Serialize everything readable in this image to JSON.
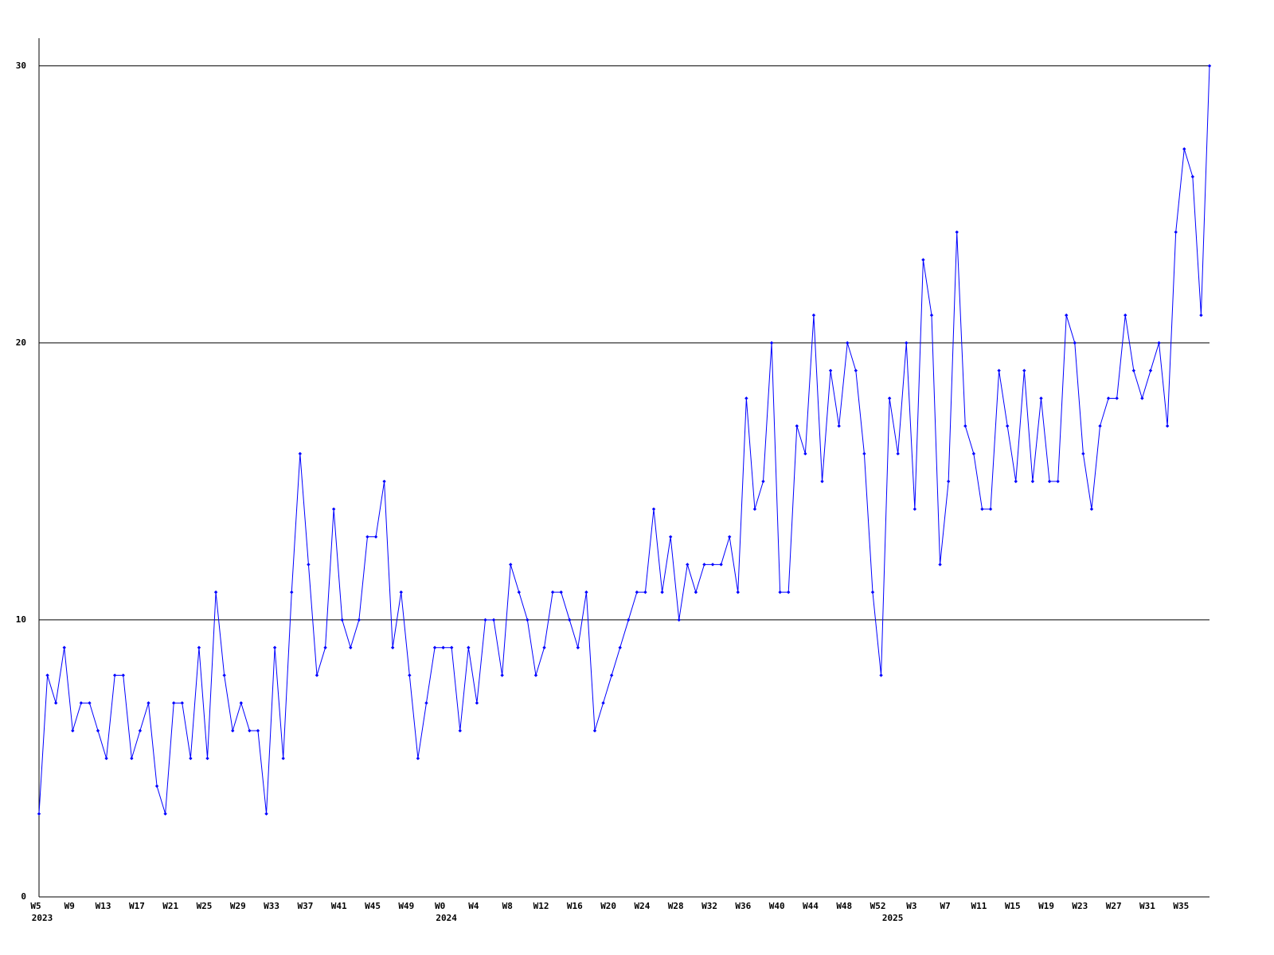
{
  "chart_data": {
    "type": "line",
    "color": "#0000ff",
    "grid": true,
    "ylim": [
      0,
      31
    ],
    "yticks": [
      0,
      10,
      20,
      30
    ],
    "categories": [
      "W5",
      null,
      null,
      null,
      "W9",
      null,
      null,
      null,
      "W13",
      null,
      null,
      null,
      "W17",
      null,
      null,
      null,
      "W21",
      null,
      null,
      null,
      "W25",
      null,
      null,
      null,
      "W29",
      null,
      null,
      null,
      "W33",
      null,
      null,
      null,
      "W37",
      null,
      null,
      null,
      "W41",
      null,
      null,
      null,
      "W45",
      null,
      null,
      null,
      "W49",
      null,
      null,
      null,
      "W0",
      null,
      null,
      null,
      "W4",
      null,
      null,
      null,
      "W8",
      null,
      null,
      null,
      "W12",
      null,
      null,
      null,
      "W16",
      null,
      null,
      null,
      "W20",
      null,
      null,
      null,
      "W24",
      null,
      null,
      null,
      "W28",
      null,
      null,
      null,
      "W32",
      null,
      null,
      null,
      "W36",
      null,
      null,
      null,
      "W40",
      null,
      null,
      null,
      "W44",
      null,
      null,
      null,
      "W48",
      null,
      null,
      null,
      "W52",
      null,
      null,
      null,
      "W3",
      null,
      null,
      null,
      "W7",
      null,
      null,
      null,
      "W11",
      null,
      null,
      null,
      "W15",
      null,
      null,
      null,
      "W19",
      null,
      null,
      null,
      "W23",
      null,
      null,
      null,
      "W27",
      null,
      null,
      null,
      "W31",
      null,
      null,
      null,
      "W35",
      null,
      null,
      null
    ],
    "category_years": [
      "2023",
      null,
      null,
      null,
      null,
      null,
      null,
      null,
      null,
      null,
      null,
      null,
      null,
      null,
      null,
      null,
      null,
      null,
      null,
      null,
      null,
      null,
      null,
      null,
      null,
      null,
      null,
      null,
      null,
      null,
      null,
      null,
      null,
      null,
      null,
      null,
      null,
      null,
      null,
      null,
      null,
      null,
      null,
      null,
      null,
      null,
      null,
      null,
      "2024",
      null,
      null,
      null,
      null,
      null,
      null,
      null,
      null,
      null,
      null,
      null,
      null,
      null,
      null,
      null,
      null,
      null,
      null,
      null,
      null,
      null,
      null,
      null,
      null,
      null,
      null,
      null,
      null,
      null,
      null,
      null,
      null,
      null,
      null,
      null,
      null,
      null,
      null,
      null,
      null,
      null,
      null,
      null,
      null,
      null,
      null,
      null,
      null,
      null,
      null,
      null,
      null,
      "2025",
      null,
      null,
      null,
      null,
      null,
      null,
      null,
      null,
      null,
      null,
      null,
      null,
      null,
      null,
      null,
      null,
      null,
      null,
      null,
      null,
      null,
      null,
      null,
      null,
      null,
      null,
      null,
      null,
      null,
      null,
      null,
      null,
      null,
      null,
      null,
      null,
      null,
      null
    ],
    "values": [
      3,
      8,
      7,
      9,
      6,
      7,
      7,
      6,
      5,
      8,
      8,
      5,
      6,
      7,
      4,
      3,
      7,
      7,
      5,
      9,
      5,
      11,
      8,
      6,
      7,
      6,
      6,
      3,
      9,
      5,
      11,
      16,
      12,
      8,
      9,
      14,
      10,
      9,
      10,
      13,
      13,
      15,
      9,
      11,
      8,
      5,
      7,
      9,
      9,
      9,
      6,
      9,
      7,
      10,
      10,
      8,
      12,
      11,
      10,
      8,
      9,
      11,
      11,
      10,
      9,
      11,
      6,
      7,
      8,
      9,
      10,
      11,
      11,
      14,
      11,
      13,
      10,
      12,
      11,
      12,
      12,
      12,
      13,
      11,
      18,
      14,
      15,
      20,
      11,
      11,
      17,
      16,
      21,
      15,
      19,
      17,
      20,
      19,
      16,
      11,
      8,
      18,
      16,
      20,
      14,
      23,
      21,
      12,
      15,
      24,
      17,
      16,
      14,
      14,
      19,
      17,
      15,
      19,
      15,
      18,
      15,
      15,
      21,
      20,
      16,
      14,
      17,
      18,
      18,
      21,
      19,
      18,
      19,
      20,
      17,
      24,
      27,
      26,
      21,
      30
    ]
  }
}
